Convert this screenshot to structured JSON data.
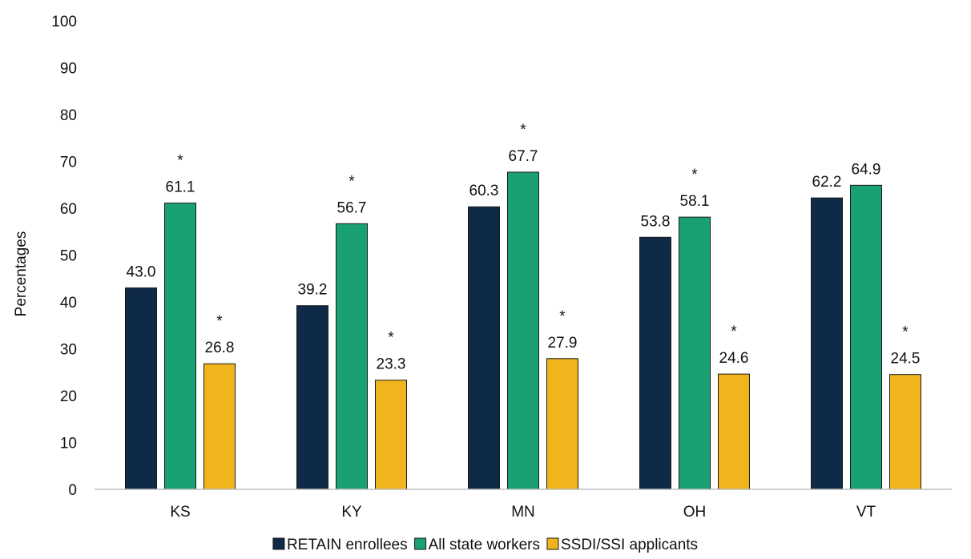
{
  "chart_data": {
    "type": "bar",
    "title": "",
    "xlabel": "",
    "ylabel": "Percentages",
    "ylim": [
      0,
      100
    ],
    "yticks": [
      0,
      10,
      20,
      30,
      40,
      50,
      60,
      70,
      80,
      90,
      100
    ],
    "grid": false,
    "legend_position": "bottom",
    "categories": [
      "KS",
      "KY",
      "MN",
      "OH",
      "VT"
    ],
    "series": [
      {
        "name": "RETAIN enrollees",
        "color": "#0f2a47",
        "values": [
          43.0,
          39.2,
          60.3,
          53.8,
          62.2
        ],
        "value_labels": [
          "43.0",
          "39.2",
          "60.3",
          "53.8",
          "62.2"
        ],
        "significant": [
          false,
          false,
          false,
          false,
          false
        ]
      },
      {
        "name": "All state workers",
        "color": "#1aa173",
        "values": [
          61.1,
          56.7,
          67.7,
          58.1,
          64.9
        ],
        "value_labels": [
          "61.1",
          "56.7",
          "67.7",
          "58.1",
          "64.9"
        ],
        "significant": [
          true,
          true,
          true,
          true,
          false
        ]
      },
      {
        "name": "SSDI/SSI applicants",
        "color": "#f0b41c",
        "values": [
          26.8,
          23.3,
          27.9,
          24.6,
          24.5
        ],
        "value_labels": [
          "26.8",
          "23.3",
          "27.9",
          "24.6",
          "24.5"
        ],
        "significant": [
          true,
          true,
          true,
          true,
          true
        ]
      }
    ],
    "significance_marker": "*"
  }
}
